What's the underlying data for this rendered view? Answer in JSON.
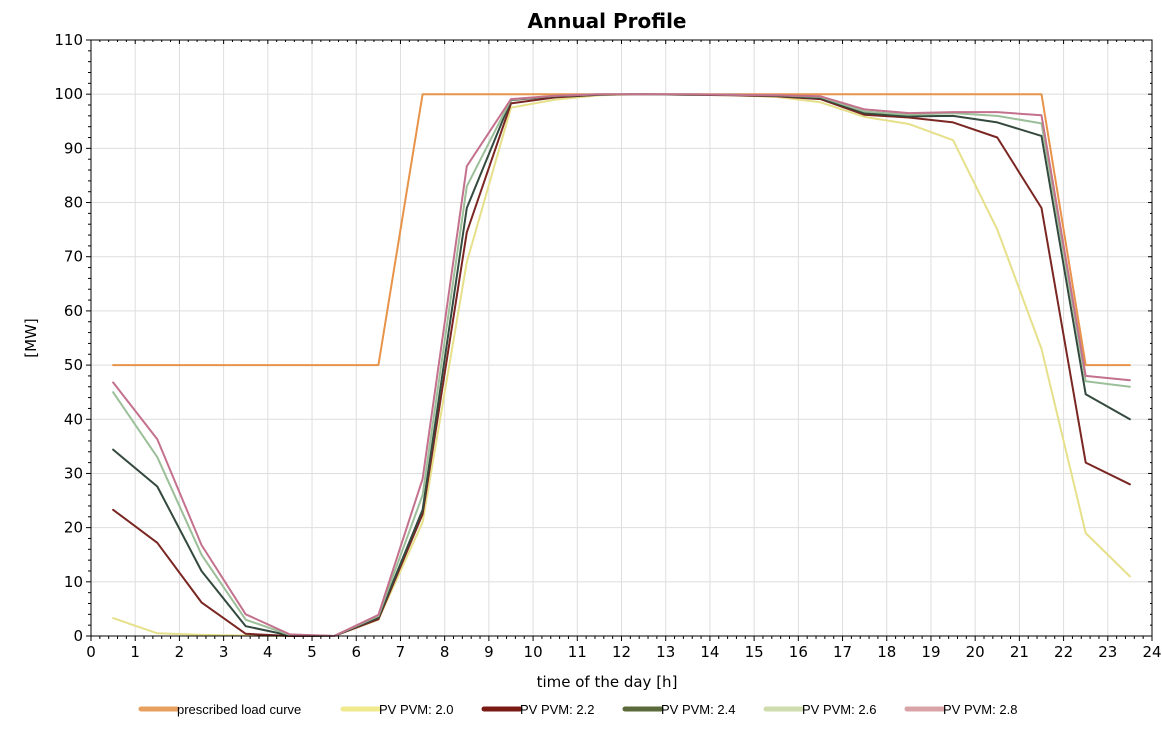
{
  "chart_data": {
    "type": "line",
    "title": "Annual Profile",
    "xlabel": "time of the day [h]",
    "ylabel": "[MW]",
    "xlim": [
      0,
      24
    ],
    "ylim": [
      0,
      110
    ],
    "x_ticks": [
      0,
      1,
      2,
      3,
      4,
      5,
      6,
      7,
      8,
      9,
      10,
      11,
      12,
      13,
      14,
      15,
      16,
      17,
      18,
      19,
      20,
      21,
      22,
      23,
      24
    ],
    "y_ticks": [
      0,
      10,
      20,
      30,
      40,
      50,
      60,
      70,
      80,
      90,
      100,
      110
    ],
    "grid": true,
    "legend_position": "bottom",
    "series": [
      {
        "name": "prescribed load curve",
        "color": "#e8934a",
        "x": [
          0.5,
          6.5,
          7.5,
          21.5,
          22.5,
          23.5
        ],
        "y": [
          50,
          50,
          100,
          100,
          50,
          50
        ]
      },
      {
        "name": "PV PVM: 2.0",
        "color": "#e6e08a",
        "x": [
          0.5,
          1.5,
          2.5,
          3.5,
          4.5,
          5.5,
          6.5,
          7.5,
          8.5,
          9.5,
          10.5,
          11.5,
          12.5,
          13.5,
          14.5,
          15.5,
          16.5,
          17.5,
          18.5,
          19.5,
          20.5,
          21.5,
          22.5,
          23.5
        ],
        "y": [
          3.3,
          0.5,
          0.2,
          0.1,
          0,
          0,
          3.0,
          21,
          69,
          97.5,
          99,
          99.8,
          100,
          99.9,
          99.8,
          99.5,
          98.5,
          95.8,
          94.5,
          91.5,
          75,
          53,
          19,
          11
        ]
      },
      {
        "name": "PV PVM: 2.2",
        "color": "#7a2622",
        "x": [
          0.5,
          1.5,
          2.5,
          3.5,
          4.5,
          5.5,
          6.5,
          7.5,
          8.5,
          9.5,
          10.5,
          11.5,
          12.5,
          13.5,
          14.5,
          15.5,
          16.5,
          17.5,
          18.5,
          19.5,
          20.5,
          21.5,
          22.5,
          23.5
        ],
        "y": [
          23.3,
          17.2,
          6.2,
          0.4,
          0,
          0,
          3.1,
          22.5,
          74.5,
          98.3,
          99.4,
          99.9,
          100,
          99.9,
          99.8,
          99.6,
          99.1,
          96.2,
          95.7,
          94.8,
          92,
          79,
          32,
          28
        ]
      },
      {
        "name": "PV PVM: 2.4",
        "color": "#344a3e",
        "x": [
          0.5,
          1.5,
          2.5,
          3.5,
          4.5,
          5.5,
          6.5,
          7.5,
          8.5,
          9.5,
          10.5,
          11.5,
          12.5,
          13.5,
          14.5,
          15.5,
          16.5,
          17.5,
          18.5,
          19.5,
          20.5,
          21.5,
          22.5,
          23.5
        ],
        "y": [
          34.4,
          27.6,
          12,
          1.8,
          0.1,
          0,
          3.4,
          23.3,
          79,
          98.9,
          99.6,
          99.9,
          100,
          99.9,
          99.9,
          99.7,
          99.3,
          96.5,
          95.9,
          96,
          94.8,
          92.3,
          44.6,
          40
        ]
      },
      {
        "name": "PV PVM: 2.6",
        "color": "#9bbf98",
        "x": [
          0.5,
          1.5,
          2.5,
          3.5,
          4.5,
          5.5,
          6.5,
          7.5,
          8.5,
          9.5,
          10.5,
          11.5,
          12.5,
          13.5,
          14.5,
          15.5,
          16.5,
          17.5,
          18.5,
          19.5,
          20.5,
          21.5,
          22.5,
          23.5
        ],
        "y": [
          45,
          33,
          15,
          3,
          0.2,
          0,
          3.7,
          26,
          83,
          99,
          99.7,
          100,
          100,
          100,
          99.9,
          99.8,
          99.5,
          96.8,
          96.2,
          96.5,
          96,
          94.6,
          47,
          46
        ]
      },
      {
        "name": "PV PVM: 2.8",
        "color": "#c3718c",
        "x": [
          0.5,
          1.5,
          2.5,
          3.5,
          4.5,
          5.5,
          6.5,
          7.5,
          8.5,
          9.5,
          10.5,
          11.5,
          12.5,
          13.5,
          14.5,
          15.5,
          16.5,
          17.5,
          18.5,
          19.5,
          20.5,
          21.5,
          22.5,
          23.5
        ],
        "y": [
          46.8,
          36.3,
          16.8,
          4,
          0.3,
          0,
          3.9,
          29,
          86.7,
          99.1,
          99.7,
          100,
          100,
          100,
          99.9,
          99.8,
          99.6,
          97.2,
          96.5,
          96.7,
          96.7,
          96.1,
          48,
          47.2
        ]
      }
    ],
    "legend": [
      {
        "label": "prescribed load curve",
        "color": "#e8a060"
      },
      {
        "label": "PV PVM: 2.0",
        "color": "#f0e98e"
      },
      {
        "label": "PV PVM: 2.2",
        "color": "#7a1a14"
      },
      {
        "label": "PV PVM: 2.4",
        "color": "#5a6a3a"
      },
      {
        "label": "PV PVM: 2.6",
        "color": "#cfdcae"
      },
      {
        "label": "PV PVM: 2.8",
        "color": "#d8a4a8"
      }
    ]
  }
}
